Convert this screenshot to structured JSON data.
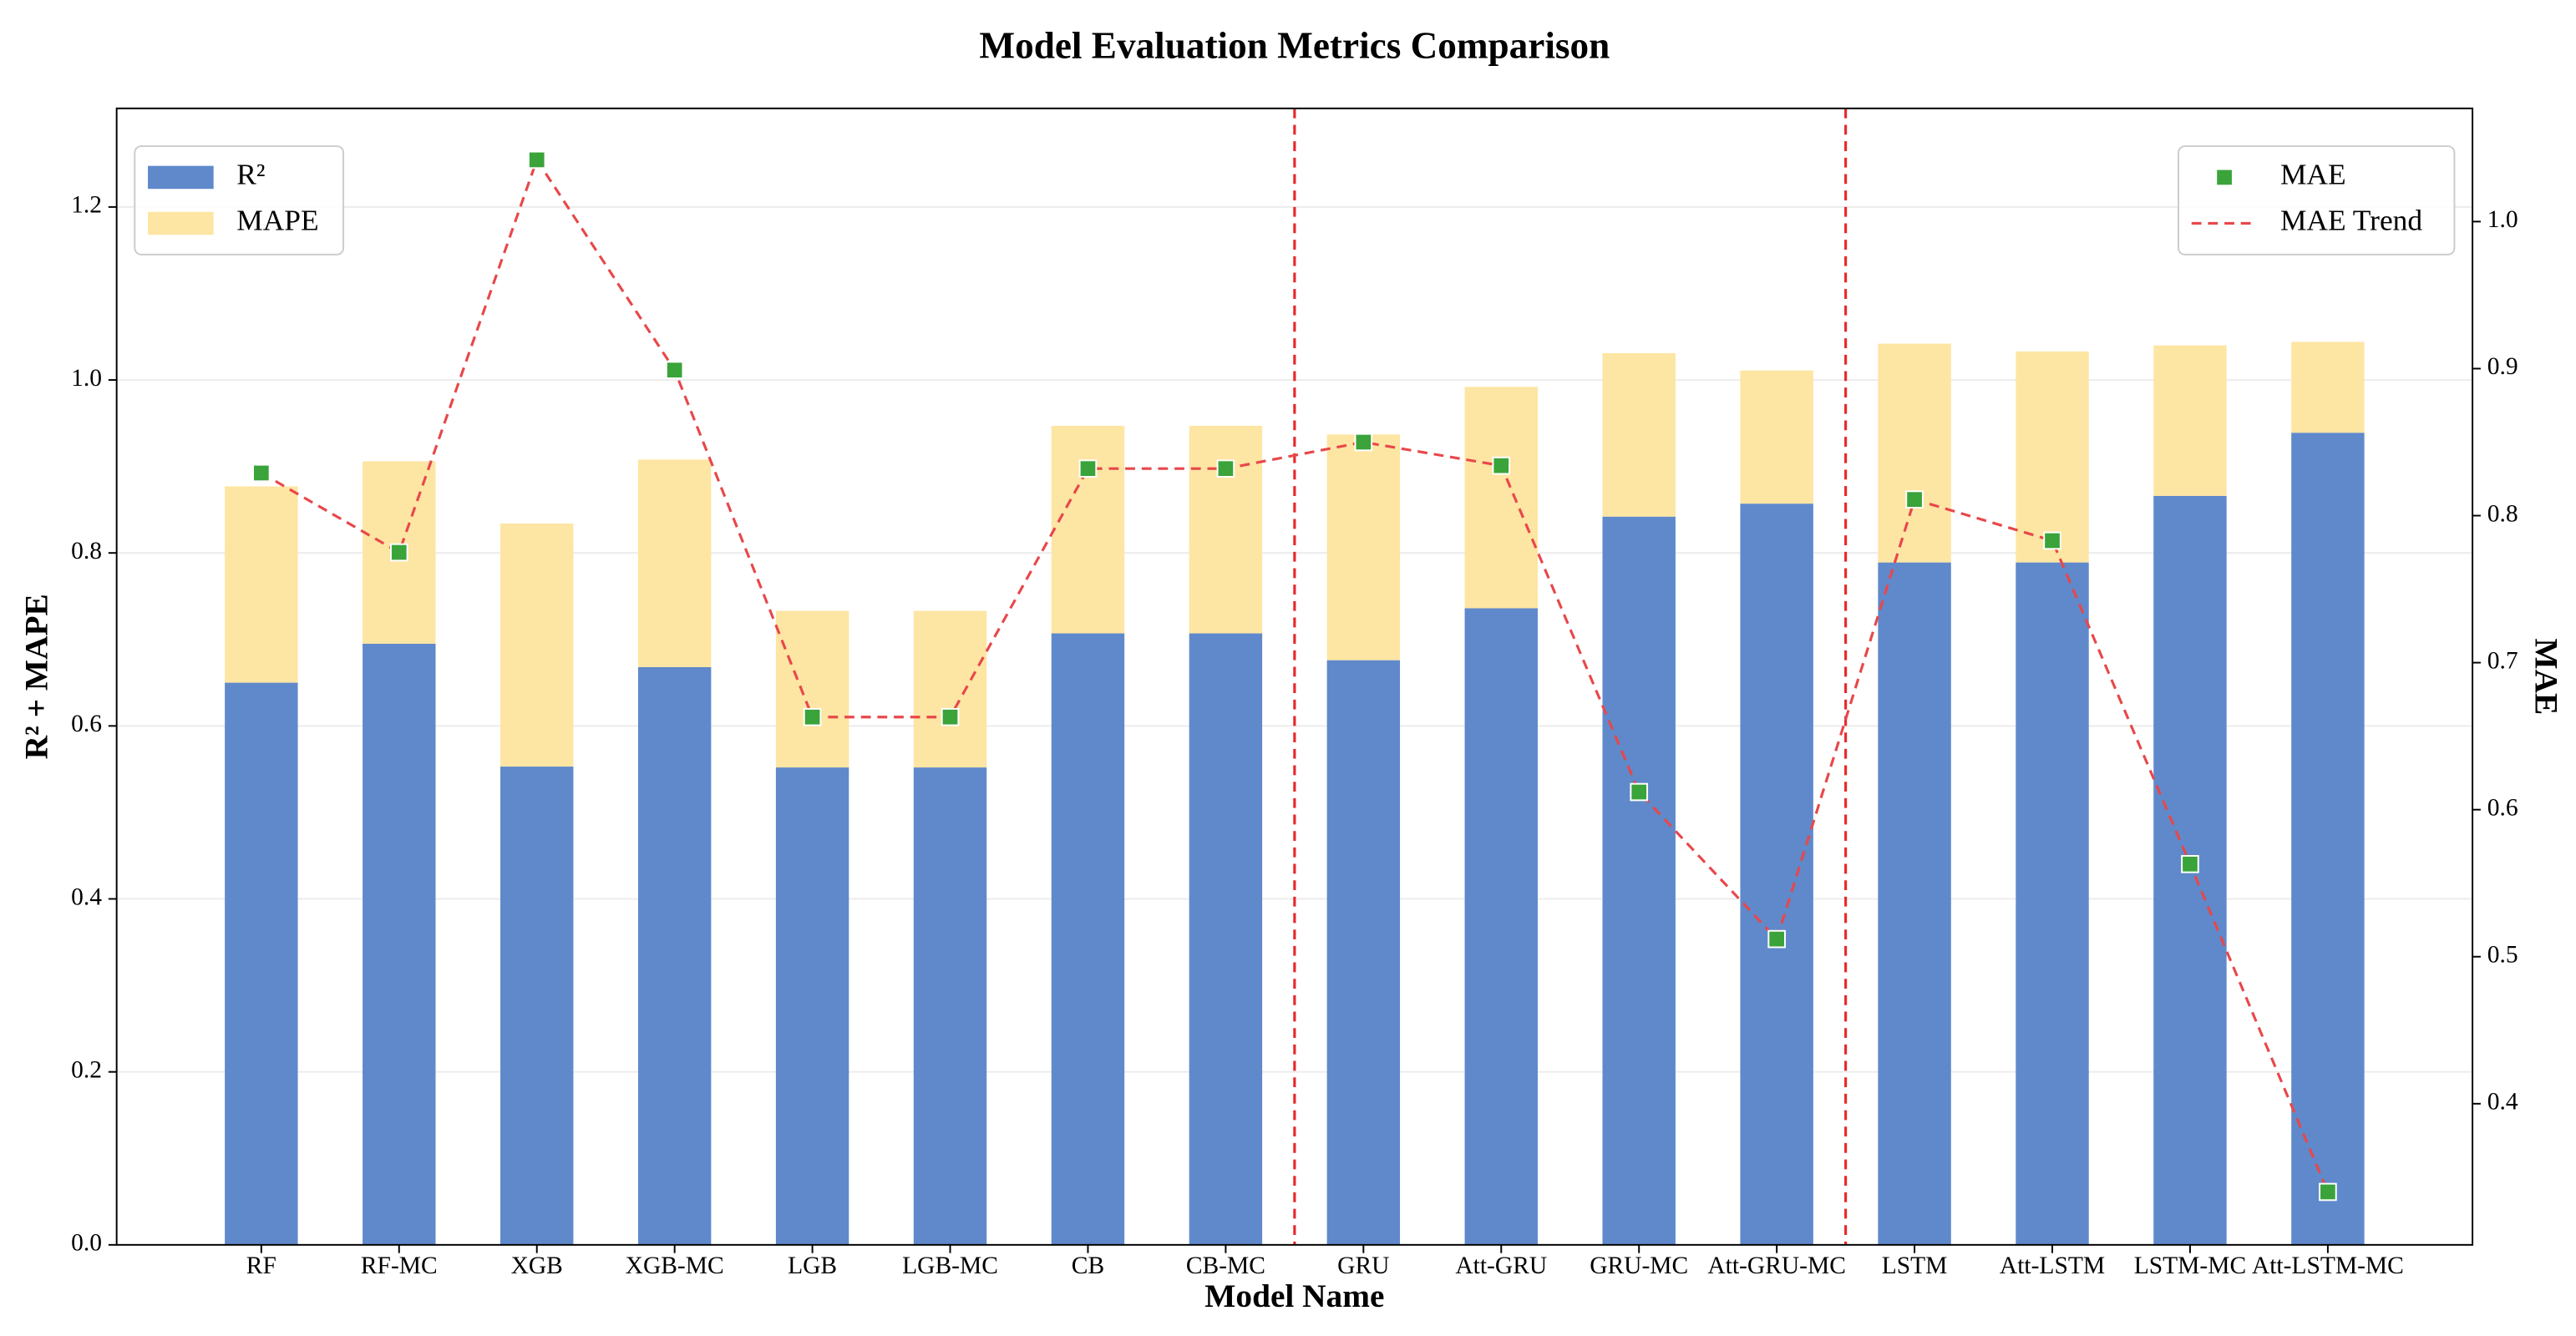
{
  "chart_data": {
    "type": "bar",
    "title": "Model Evaluation Metrics Comparison",
    "xlabel": "Model Name",
    "ylabel": "R² + MAPE",
    "y2label": "MAE",
    "categories": [
      "RF",
      "RF-MC",
      "XGB",
      "XGB-MC",
      "LGB",
      "LGB-MC",
      "CB",
      "CB-MC",
      "GRU",
      "Att-GRU",
      "GRU-MC",
      "Att-GRU-MC",
      "LSTM",
      "Att-LSTM",
      "LSTM-MC",
      "Att-LSTM-MC"
    ],
    "series": [
      {
        "name": "R²",
        "type": "bar",
        "color": "#5f89cb",
        "values": [
          0.65,
          0.695,
          0.553,
          0.668,
          0.552,
          0.552,
          0.707,
          0.707,
          0.676,
          0.736,
          0.842,
          0.857,
          0.789,
          0.789,
          0.866,
          0.939
        ]
      },
      {
        "name": "MAPE",
        "type": "bar",
        "color": "#fde5a3",
        "values": [
          0.227,
          0.211,
          0.281,
          0.24,
          0.181,
          0.181,
          0.24,
          0.24,
          0.261,
          0.256,
          0.189,
          0.154,
          0.253,
          0.244,
          0.174,
          0.105
        ]
      },
      {
        "name": "MAE",
        "type": "scatter",
        "axis": "y2",
        "color": "#3aa33a",
        "values": [
          0.829,
          0.775,
          1.042,
          0.899,
          0.663,
          0.663,
          0.832,
          0.832,
          0.85,
          0.834,
          0.612,
          0.512,
          0.811,
          0.783,
          0.563,
          0.34
        ]
      },
      {
        "name": "MAE Trend",
        "type": "line",
        "axis": "y2",
        "color": "#e8474a",
        "values": [
          0.829,
          0.775,
          1.042,
          0.899,
          0.663,
          0.663,
          0.832,
          0.832,
          0.85,
          0.834,
          0.612,
          0.512,
          0.811,
          0.783,
          0.563,
          0.34
        ]
      }
    ],
    "ylim": [
      0,
      1.314
    ],
    "yticks": [
      {
        "value": 0,
        "label": "0.0"
      },
      0.2,
      0.4,
      0.6,
      0.8,
      {
        "value": 1,
        "label": "1.0"
      },
      1.2
    ],
    "y2lim": [
      0.304,
      1.077
    ],
    "y2ticks": [
      0.4,
      0.5,
      0.6,
      0.7,
      0.8,
      0.9,
      {
        "value": 1,
        "label": "1.0"
      }
    ],
    "vlines": [
      7.5,
      11.5
    ],
    "vline_color": "#e8282a",
    "grid": true,
    "legend": "upper left",
    "legend2": "upper right"
  }
}
